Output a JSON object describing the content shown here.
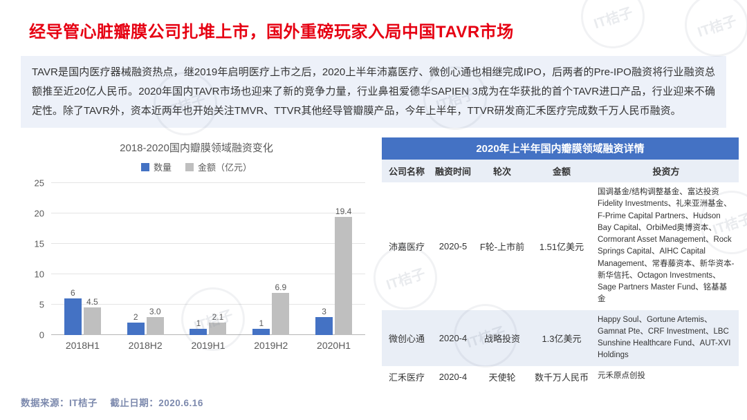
{
  "page": {
    "title": "经导管心脏瓣膜公司扎堆上市，国外重磅玩家入局中国TAVR市场",
    "intro": "TAVR是国内医疗器械融资热点，继2019年启明医疗上市之后，2020上半年沛嘉医疗、微创心通也相继完成IPO，后两者的Pre-IPO融资将行业融资总额推至近20亿人民币。2020年国内TAVR市场也迎来了新的竞争力量，行业鼻祖爱德华SAPIEN 3成为在华获批的首个TAVR进口产品，行业迎来不确定性。除了TAVR外，资本近两年也开始关注TMVR、TTVR其他经导管瓣膜产品，今年上半年，TTVR研发商汇禾医疗完成数千万人民币融资。",
    "watermark": "IT桔子",
    "footer": {
      "source": "数据来源：IT桔子",
      "deadline": "截止日期：2020.6.16"
    }
  },
  "chart_data": {
    "type": "bar",
    "title": "2018-2020国内瓣膜领域融资变化",
    "categories": [
      "2018H1",
      "2018H2",
      "2019H1",
      "2019H2",
      "2020H1"
    ],
    "series": [
      {
        "name": "数量",
        "color": "#4472c4",
        "values": [
          6,
          2,
          1,
          1,
          3
        ],
        "labels": [
          "6",
          "2",
          "1",
          "1",
          "3"
        ]
      },
      {
        "name": "金额（亿元）",
        "color": "#bfbfbf",
        "values": [
          4.5,
          3.0,
          2.1,
          6.9,
          19.4
        ],
        "labels": [
          "4.5",
          "3.0",
          "2.1",
          "6.9",
          "19.4"
        ]
      }
    ],
    "ylim": [
      0,
      25
    ],
    "yticks": [
      0,
      5,
      10,
      15,
      20,
      25
    ],
    "grid": true,
    "legend_position": "top"
  },
  "table": {
    "title": "2020年上半年国内瓣膜领域融资详情",
    "columns": [
      "公司名称",
      "融资时间",
      "轮次",
      "金额",
      "投资方"
    ],
    "rows": [
      {
        "company": "沛嘉医疗",
        "date": "2020-5",
        "round": "F轮-上市前",
        "amount": "1.51亿美元",
        "investors": "国调基金/结构调整基金、富达投资Fidelity Investments、礼来亚洲基金、F-Prime Capital Partners、Hudson Bay Capital、OrbiMed奥博资本、Cormorant Asset Management、Rock Springs Capital、AIHC Capital Management、常春藤资本、新华资本-新华信托、Octagon Investments、Sage Partners Master Fund、铭基基金"
      },
      {
        "company": "微创心通",
        "date": "2020-4",
        "round": "战略投资",
        "amount": "1.3亿美元",
        "investors": "Happy Soul、Gortune Artemis、Gamnat Pte、CRF Investment、LBC Sunshine Healthcare Fund、AUT-XVI Holdings"
      },
      {
        "company": "汇禾医疗",
        "date": "2020-4",
        "round": "天使轮",
        "amount": "数千万人民币",
        "investors": "元禾原点创投"
      }
    ]
  }
}
